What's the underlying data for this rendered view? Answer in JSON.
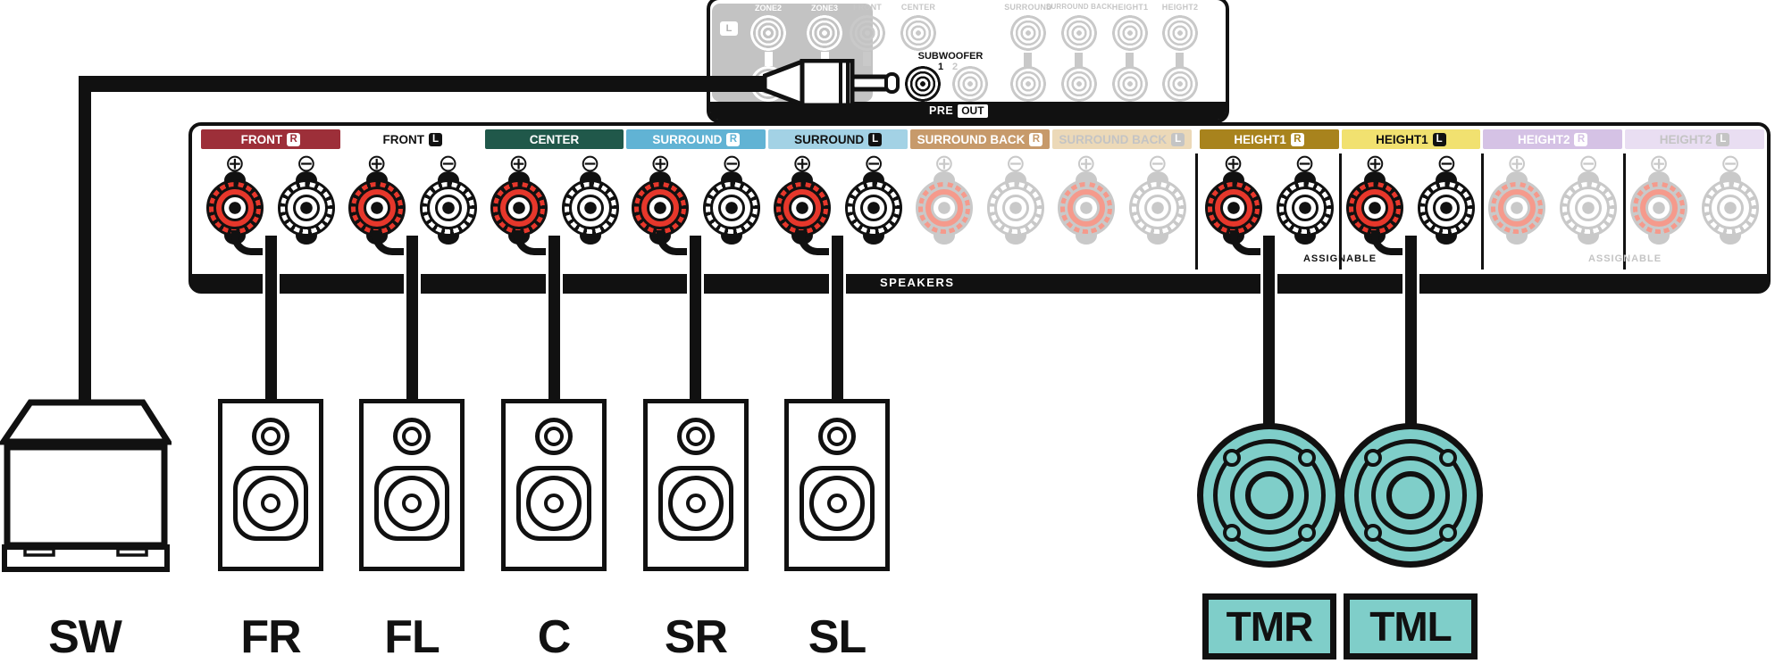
{
  "pre_out_panel": {
    "bar": {
      "pre": "PRE",
      "out": "OUT"
    },
    "zone_group": {
      "channel_badge": "L",
      "jacks": [
        {
          "label": "ZONE2"
        },
        {
          "label": "ZONE3"
        }
      ]
    },
    "columns": [
      {
        "label": "FRONT"
      },
      {
        "label": "CENTER"
      },
      {
        "label": "SURROUND"
      },
      {
        "label": "SURROUND BACK"
      },
      {
        "label": "HEIGHT1"
      },
      {
        "label": "HEIGHT2"
      }
    ],
    "subwoofer": {
      "label": "SUBWOOFER",
      "jack1": "1",
      "jack2": "2"
    }
  },
  "speakers_panel": {
    "bar_label": "SPEAKERS",
    "assignable_height1": "ASSIGNABLE",
    "assignable_height2": "ASSIGNABLE",
    "plus_symbol": "⊕",
    "minus_symbol": "⊖",
    "channels": [
      {
        "id": "front-r",
        "label": "FRONT",
        "badge": "R",
        "bg": "#9d2f39",
        "fg": "#ffffff",
        "badge_bg": "#ffffff",
        "badge_fg": "#9d2f39",
        "faded": false,
        "cable": true
      },
      {
        "id": "front-l",
        "label": "FRONT",
        "badge": "L",
        "bg": "#ffffff",
        "fg": "#111111",
        "badge_bg": "#111111",
        "badge_fg": "#ffffff",
        "faded": false,
        "cable": true
      },
      {
        "id": "center",
        "label": "CENTER",
        "badge": "",
        "bg": "#20584a",
        "fg": "#ffffff",
        "badge_bg": "",
        "badge_fg": "",
        "faded": false,
        "cable": true
      },
      {
        "id": "surround-r",
        "label": "SURROUND",
        "badge": "R",
        "bg": "#61b3d4",
        "fg": "#ffffff",
        "badge_bg": "#ffffff",
        "badge_fg": "#61b3d4",
        "faded": false,
        "cable": true
      },
      {
        "id": "surround-l",
        "label": "SURROUND",
        "badge": "L",
        "bg": "#a3d2e5",
        "fg": "#111111",
        "badge_bg": "#111111",
        "badge_fg": "#ffffff",
        "faded": false,
        "cable": true
      },
      {
        "id": "surround-back-r",
        "label": "SURROUND BACK",
        "badge": "R",
        "bg": "#c79a6b",
        "fg": "#ffffff",
        "badge_bg": "#ffffff",
        "badge_fg": "#c79a6b",
        "faded": true,
        "cable": false
      },
      {
        "id": "surround-back-l",
        "label": "SURROUND BACK",
        "badge": "L",
        "bg": "#ecd9b8",
        "fg": "#c4c4c4",
        "badge_bg": "#c4c4c4",
        "badge_fg": "#ffffff",
        "faded": true,
        "cable": false
      },
      {
        "id": "height1-r",
        "label": "HEIGHT1",
        "badge": "R",
        "bg": "#a8831d",
        "fg": "#ffffff",
        "badge_bg": "#ffffff",
        "badge_fg": "#a8831d",
        "faded": false,
        "cable": true,
        "gap_before": true
      },
      {
        "id": "height1-l",
        "label": "HEIGHT1",
        "badge": "L",
        "bg": "#f1e170",
        "fg": "#111111",
        "badge_bg": "#111111",
        "badge_fg": "#ffffff",
        "faded": false,
        "cable": true
      },
      {
        "id": "height2-r",
        "label": "HEIGHT2",
        "badge": "R",
        "bg": "#d5c2e5",
        "fg": "#ffffff",
        "badge_bg": "#ffffff",
        "badge_fg": "#d5c2e5",
        "faded": true,
        "cable": false
      },
      {
        "id": "height2-l",
        "label": "HEIGHT2",
        "badge": "L",
        "bg": "#e9def2",
        "fg": "#c4c4c4",
        "badge_bg": "#c4c4c4",
        "badge_fg": "#ffffff",
        "faded": true,
        "cable": false
      }
    ]
  },
  "speakers": {
    "subwoofer": {
      "label": "SW"
    },
    "bookshelf": [
      {
        "label": "FR"
      },
      {
        "label": "FL"
      },
      {
        "label": "C"
      },
      {
        "label": "SR"
      },
      {
        "label": "SL"
      }
    ],
    "ceiling": [
      {
        "label": "TMR"
      },
      {
        "label": "TML"
      }
    ]
  },
  "colors": {
    "ink": "#111111",
    "active_post_red": "#e6372b",
    "faded_post_pink": "#f59a8c",
    "faded_gray": "#c9c9c9",
    "zone_box_gray": "#c3c3c3",
    "ceiling_speaker_teal": "#7fcec9",
    "front_r_red": "#9d2f39",
    "center_green": "#20584a",
    "surround_r_blue": "#61b3d4",
    "surround_l_blue": "#a3d2e5",
    "surround_back_r_tan": "#c79a6b",
    "surround_back_l_tan": "#ecd9b8",
    "height1_r_gold": "#a8831d",
    "height1_l_yellow": "#f1e170",
    "height2_r_lavender": "#d5c2e5",
    "height2_l_lavender": "#e9def2"
  }
}
